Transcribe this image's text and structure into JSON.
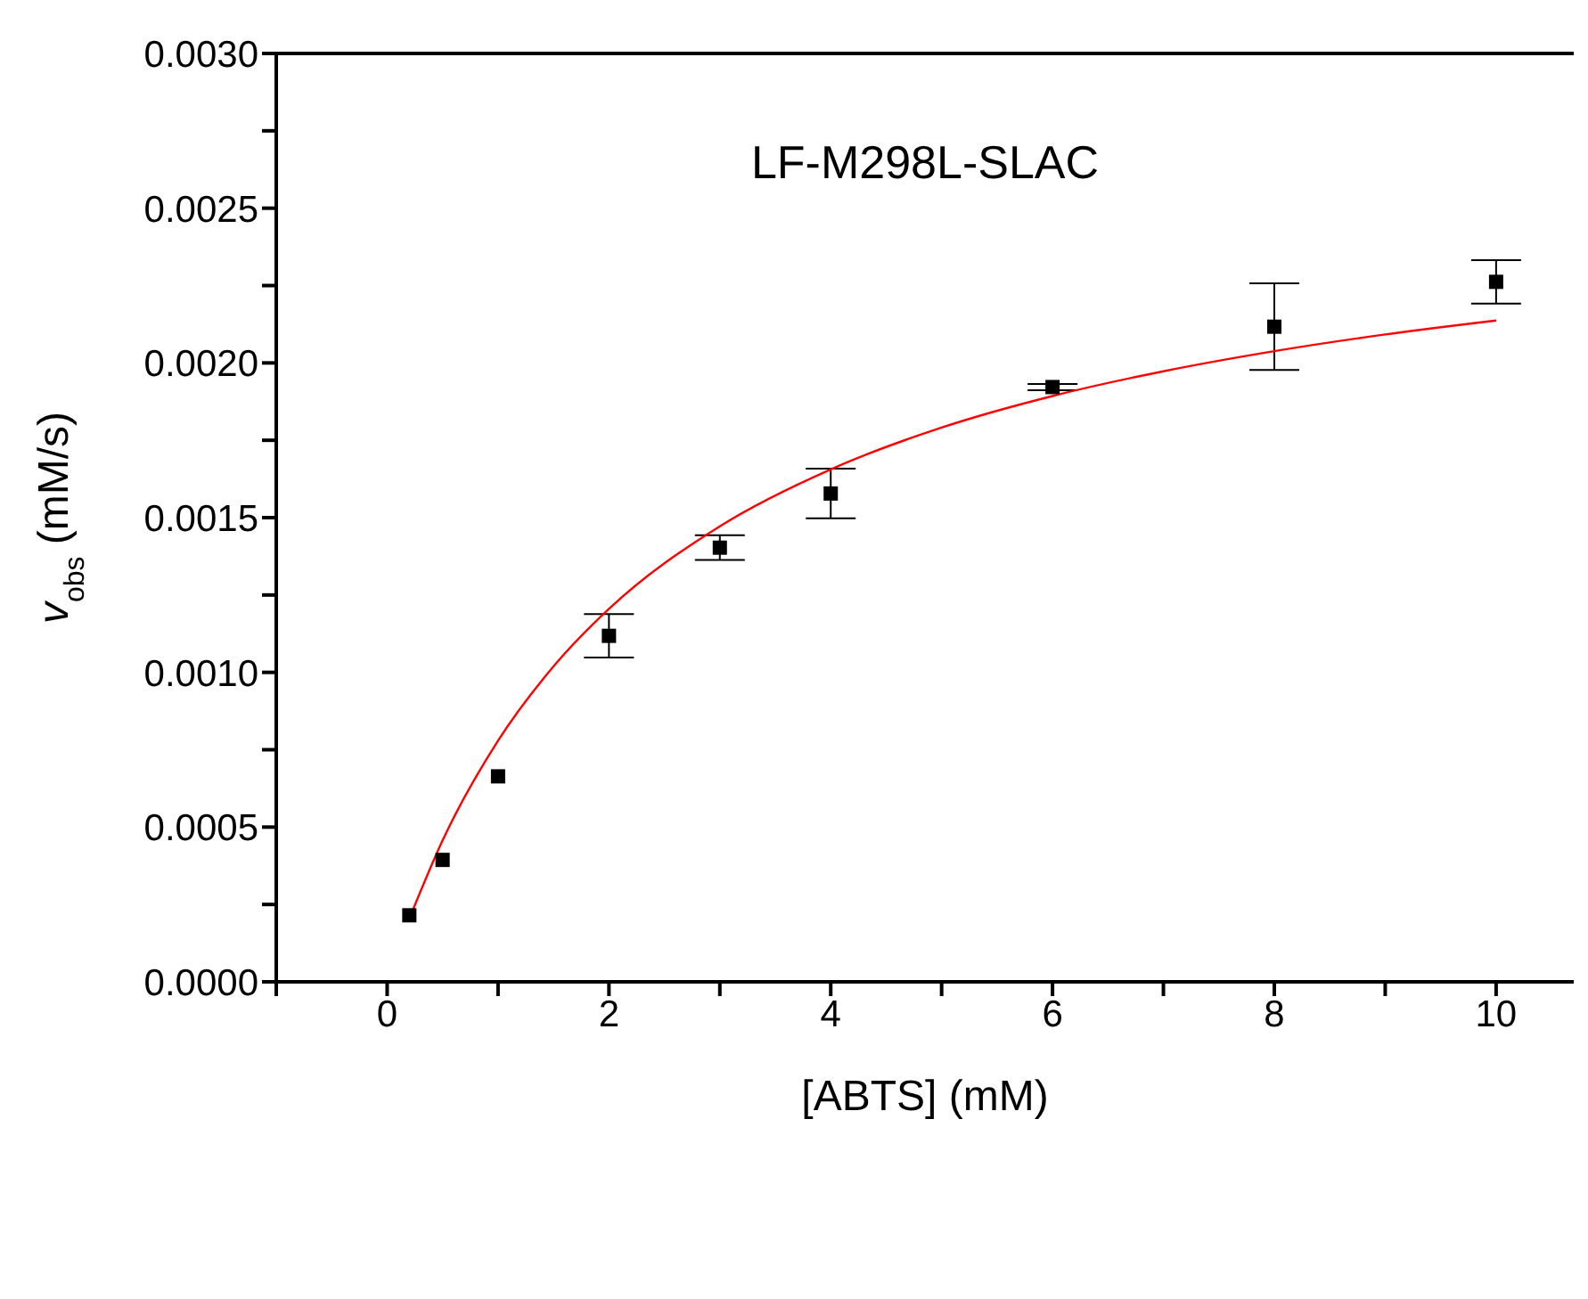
{
  "chart_data": {
    "type": "scatter",
    "title": "LF-M298L-SLAC",
    "xlabel": "[ABTS] (mM)",
    "ylabel": "v$_{obs}$ (mM/s)",
    "marker": "square",
    "grid": false,
    "legend": false,
    "xlim": [
      -1,
      10.7
    ],
    "xticks": [
      {
        "value": -1,
        "label": null
      },
      0,
      {
        "value": 1,
        "label": null
      },
      2,
      {
        "value": 3,
        "label": null
      },
      4,
      {
        "value": 5,
        "label": null
      },
      6,
      {
        "value": 7,
        "label": null
      },
      8,
      {
        "value": 9,
        "label": null
      },
      10
    ],
    "ylim": [
      0,
      0.003
    ],
    "yticks": [
      {
        "value": 0,
        "label": "0.0000"
      },
      {
        "value": 0.00025,
        "label": null
      },
      0.0005,
      {
        "value": 0.00075,
        "label": null
      },
      {
        "value": 0.001,
        "label": "0.0010"
      },
      {
        "value": 0.00125,
        "label": null
      },
      0.0015,
      {
        "value": 0.00175,
        "label": null
      },
      {
        "value": 0.002,
        "label": "0.0020"
      },
      {
        "value": 0.00225,
        "label": null
      },
      0.0025,
      {
        "value": 0.00275,
        "label": null
      },
      {
        "value": 0.003,
        "label": "0.0030"
      }
    ],
    "series": [
      {
        "color": "#000000",
        "x": [
          0.2,
          0.5,
          1,
          2,
          3,
          4,
          6,
          8,
          10
        ],
        "values": [
          0.000215,
          0.000394,
          0.000664,
          0.001118,
          0.001403,
          0.001578,
          0.001922,
          0.002117,
          0.002262
        ],
        "errors": [
          null,
          null,
          null,
          7e-05,
          4e-05,
          8e-05,
          1e-05,
          0.00014,
          7e-05
        ]
      },
      {
        "type": "line",
        "color": "#ff0000",
        "marker": "none",
        "x": [
          0.2,
          0.5,
          1,
          1.5,
          2,
          3,
          4,
          5,
          6,
          7,
          8,
          9,
          10
        ],
        "values": [
          0.000204,
          0.000457,
          0.000779,
          0.001019,
          0.001205,
          0.001472,
          0.001656,
          0.001791,
          0.001893,
          0.001973,
          0.002038,
          0.002092,
          0.002137
        ]
      }
    ]
  }
}
